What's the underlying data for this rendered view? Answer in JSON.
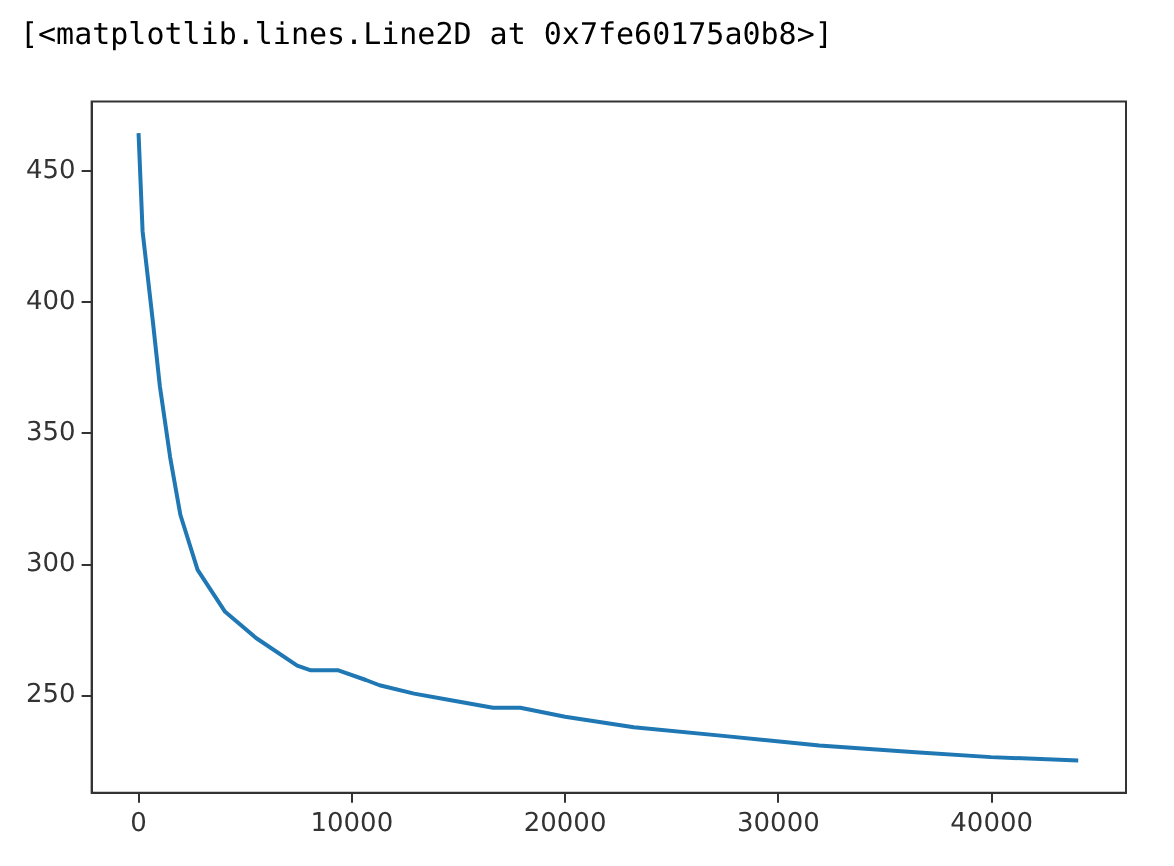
{
  "chart_data": {
    "type": "line",
    "annotations": [
      "[<matplotlib.lines.Line2D at 0x7fe60175a0b8>]"
    ],
    "x": [
      0,
      190,
      680,
      1000,
      1480,
      1960,
      2770,
      4060,
      5510,
      7440,
      8080,
      9370,
      10660,
      11300,
      12920,
      14520,
      16620,
      17900,
      20000,
      23220,
      27410,
      31920,
      36430,
      39970,
      44060
    ],
    "series": [
      {
        "color": "#1f77b4",
        "values": [
          464.5,
          427,
          392,
          368,
          341,
          319,
          298,
          282,
          272,
          261.5,
          259.7,
          259.7,
          256,
          254,
          250.8,
          248.5,
          245.4,
          245.4,
          242,
          238,
          234.7,
          231,
          228.5,
          226.6,
          225.3
        ]
      }
    ],
    "xlim": [
      -2200,
      46300
    ],
    "ylim": [
      213,
      476.5
    ],
    "xticks": [
      0,
      10000,
      20000,
      30000,
      40000
    ],
    "yticks": [
      250,
      300,
      350,
      400,
      450
    ],
    "grid": false,
    "legend": false,
    "marker": "none",
    "line_style": "solid"
  }
}
